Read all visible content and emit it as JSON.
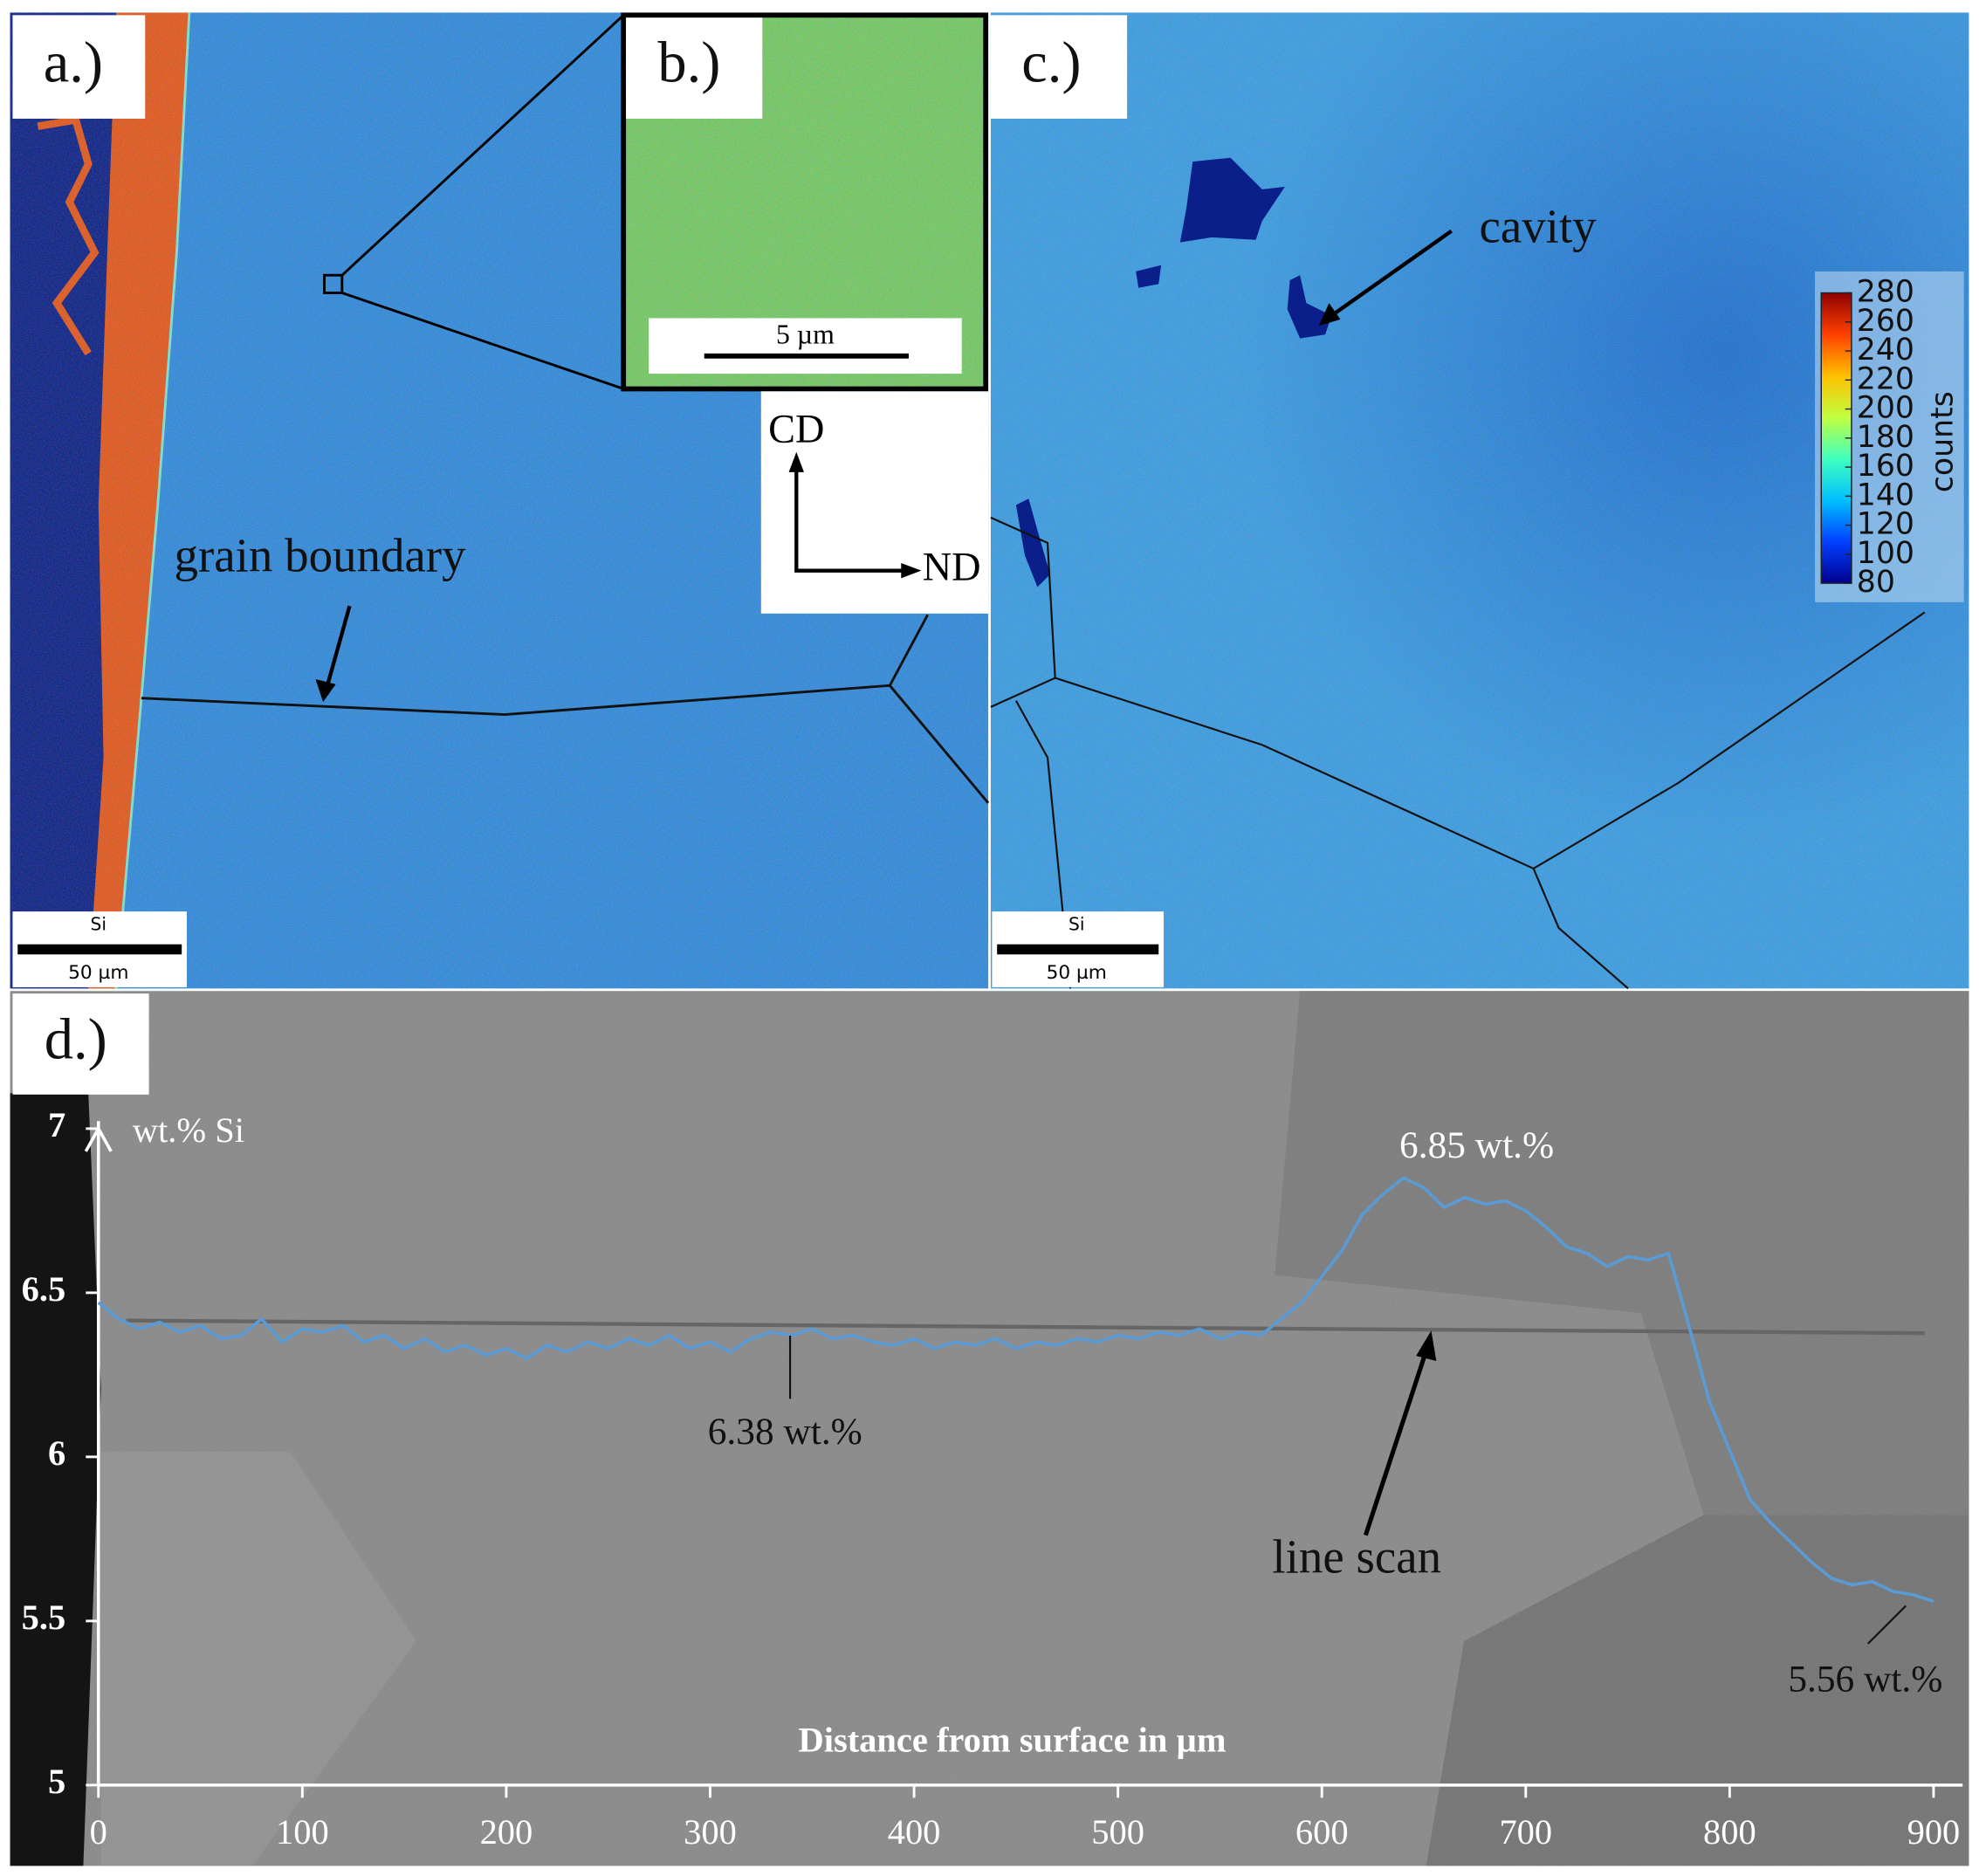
{
  "panels": {
    "a": {
      "label": "a.)",
      "annotation": "grain boundary",
      "scale_element": "Si",
      "scale_bar": "50 µm"
    },
    "b": {
      "label": "b.)",
      "scale_bar": "5 µm"
    },
    "directions": {
      "up": "CD",
      "right": "ND"
    },
    "c": {
      "label": "c.)",
      "annotation": "cavity",
      "scale_element": "Si",
      "scale_bar": "50 µm",
      "colorbar": {
        "title": "counts",
        "lim": [
          80,
          280
        ],
        "ticks": [
          80,
          100,
          120,
          140,
          160,
          180,
          200,
          220,
          240,
          260,
          280
        ]
      }
    },
    "d": {
      "label": "d.)"
    }
  },
  "chart_data": {
    "type": "line",
    "ylabel": "wt.% Si",
    "xlabel": "Distance from surface in µm",
    "xlim": [
      0,
      900
    ],
    "ylim": [
      5,
      7
    ],
    "xticks": [
      0,
      100,
      200,
      300,
      400,
      500,
      600,
      700,
      800,
      900
    ],
    "yticks": [
      5,
      5.5,
      6,
      6.5,
      7
    ],
    "color": "#5b9bd5",
    "annotations": [
      "6.85 wt.%",
      "6.38 wt.%",
      "5.56 wt.%",
      "line scan"
    ],
    "x": [
      0,
      10,
      20,
      30,
      40,
      50,
      60,
      70,
      80,
      90,
      100,
      110,
      120,
      130,
      140,
      150,
      160,
      170,
      180,
      190,
      200,
      210,
      220,
      230,
      240,
      250,
      260,
      270,
      280,
      290,
      300,
      310,
      320,
      330,
      340,
      350,
      360,
      370,
      380,
      390,
      400,
      410,
      420,
      430,
      440,
      450,
      460,
      470,
      480,
      490,
      500,
      510,
      520,
      530,
      540,
      550,
      560,
      570,
      580,
      590,
      600,
      610,
      620,
      630,
      640,
      650,
      660,
      670,
      680,
      690,
      700,
      710,
      720,
      730,
      740,
      750,
      760,
      770,
      780,
      790,
      800,
      810,
      820,
      830,
      840,
      850,
      860,
      870,
      880,
      890,
      900
    ],
    "values": [
      6.47,
      6.42,
      6.39,
      6.41,
      6.38,
      6.4,
      6.36,
      6.37,
      6.42,
      6.35,
      6.39,
      6.38,
      6.4,
      6.35,
      6.37,
      6.33,
      6.36,
      6.32,
      6.34,
      6.31,
      6.33,
      6.3,
      6.34,
      6.32,
      6.35,
      6.33,
      6.36,
      6.34,
      6.37,
      6.33,
      6.35,
      6.32,
      6.36,
      6.38,
      6.37,
      6.39,
      6.36,
      6.37,
      6.35,
      6.34,
      6.36,
      6.33,
      6.35,
      6.34,
      6.36,
      6.33,
      6.35,
      6.34,
      6.36,
      6.35,
      6.37,
      6.36,
      6.38,
      6.37,
      6.39,
      6.36,
      6.38,
      6.37,
      6.42,
      6.47,
      6.55,
      6.63,
      6.74,
      6.8,
      6.85,
      6.82,
      6.76,
      6.79,
      6.77,
      6.78,
      6.75,
      6.7,
      6.64,
      6.62,
      6.58,
      6.61,
      6.6,
      6.62,
      6.4,
      6.17,
      6.02,
      5.87,
      5.8,
      5.74,
      5.68,
      5.63,
      5.61,
      5.62,
      5.59,
      5.58,
      5.56
    ]
  }
}
